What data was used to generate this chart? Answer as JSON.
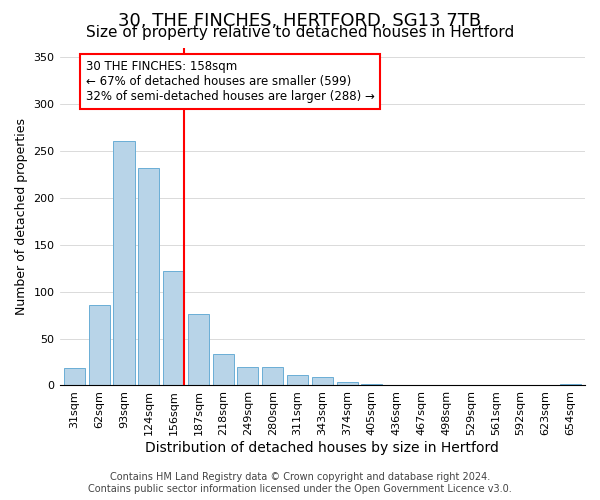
{
  "title": "30, THE FINCHES, HERTFORD, SG13 7TB",
  "subtitle": "Size of property relative to detached houses in Hertford",
  "xlabel": "Distribution of detached houses by size in Hertford",
  "ylabel": "Number of detached properties",
  "bar_labels": [
    "31sqm",
    "62sqm",
    "93sqm",
    "124sqm",
    "156sqm",
    "187sqm",
    "218sqm",
    "249sqm",
    "280sqm",
    "311sqm",
    "343sqm",
    "374sqm",
    "405sqm",
    "436sqm",
    "467sqm",
    "498sqm",
    "529sqm",
    "561sqm",
    "592sqm",
    "623sqm",
    "654sqm"
  ],
  "bar_values": [
    19,
    86,
    260,
    232,
    122,
    76,
    33,
    20,
    20,
    11,
    9,
    4,
    2,
    1,
    0,
    0,
    0,
    0,
    0,
    0,
    2
  ],
  "bar_color": "#b8d4e8",
  "bar_edge_color": "#6aaed6",
  "vline_color": "red",
  "vline_x": 4.425,
  "annotation_text": "30 THE FINCHES: 158sqm\n← 67% of detached houses are smaller (599)\n32% of semi-detached houses are larger (288) →",
  "annotation_box_color": "white",
  "annotation_box_edge_color": "red",
  "ylim": [
    0,
    360
  ],
  "yticks": [
    0,
    50,
    100,
    150,
    200,
    250,
    300,
    350
  ],
  "footer_line1": "Contains HM Land Registry data © Crown copyright and database right 2024.",
  "footer_line2": "Contains public sector information licensed under the Open Government Licence v3.0.",
  "title_fontsize": 13,
  "subtitle_fontsize": 11,
  "xlabel_fontsize": 10,
  "ylabel_fontsize": 9,
  "tick_fontsize": 8,
  "annotation_fontsize": 8.5,
  "footer_fontsize": 7
}
